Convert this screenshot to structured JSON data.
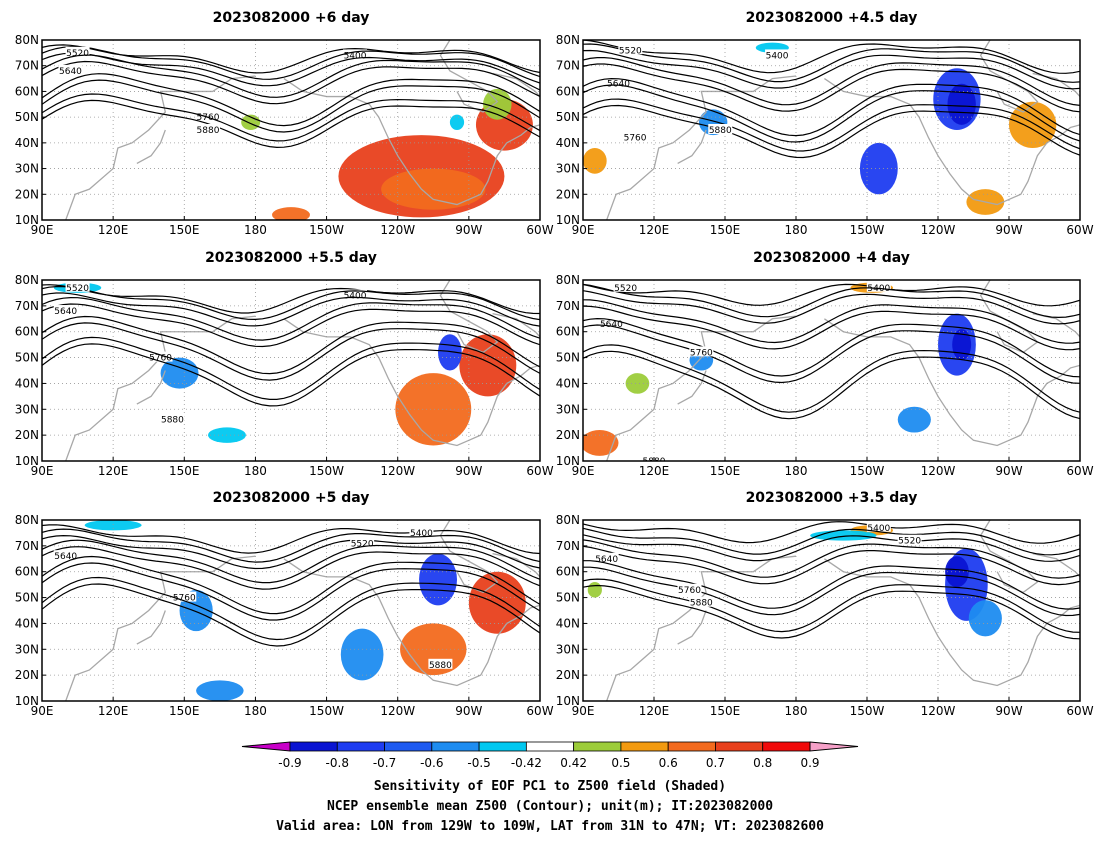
{
  "panels": [
    {
      "id": "p1",
      "title": "2023082000 +6 day",
      "contours": [
        {
          "label": "5400",
          "lbl_lon": 222,
          "lbl_lat": 74,
          "base": 73,
          "amp": 4,
          "phase": 0.6
        },
        {
          "label": "5520",
          "lbl_lon": 105,
          "lbl_lat": 75,
          "base": 69,
          "amp": 5,
          "phase": 0.4
        },
        {
          "label": "5640",
          "lbl_lon": 102,
          "lbl_lat": 68,
          "base": 64,
          "amp": 7,
          "phase": 0.2
        },
        {
          "label": "5760",
          "lbl_lon": 160,
          "lbl_lat": 50,
          "base": 55,
          "amp": 9,
          "phase": 0.0
        },
        {
          "label": "5880",
          "lbl_lon": 160,
          "lbl_lat": 45,
          "base": 48,
          "amp": 8,
          "phase": 0.1
        }
      ],
      "blobs": [
        {
          "lon": 250,
          "lat": 27,
          "rx": 35,
          "ry": 16,
          "color": "#e8401c"
        },
        {
          "lon": 255,
          "lat": 22,
          "rx": 22,
          "ry": 8,
          "color": "#f26a1e"
        },
        {
          "lon": 285,
          "lat": 47,
          "rx": 12,
          "ry": 10,
          "color": "#e8401c"
        },
        {
          "lon": 282,
          "lat": 55,
          "rx": 6,
          "ry": 6,
          "color": "#9ccc3a"
        },
        {
          "lon": 178,
          "lat": 48,
          "rx": 4,
          "ry": 3,
          "color": "#9ccc3a"
        },
        {
          "lon": 195,
          "lat": 12,
          "rx": 8,
          "ry": 3,
          "color": "#f26a1e"
        },
        {
          "lon": 265,
          "lat": 48,
          "rx": 3,
          "ry": 3,
          "color": "#00c8f0"
        }
      ]
    },
    {
      "id": "p2",
      "title": "2023082000 +4.5 day",
      "contours": [
        {
          "label": "5400",
          "lbl_lon": 172,
          "lbl_lat": 74,
          "base": 74,
          "amp": 5,
          "phase": 1.2
        },
        {
          "label": "5520",
          "lbl_lon": 110,
          "lbl_lat": 76,
          "base": 69,
          "amp": 6,
          "phase": 1.0
        },
        {
          "label": "5640",
          "lbl_lon": 105,
          "lbl_lat": 63,
          "base": 62,
          "amp": 8,
          "phase": 0.8
        },
        {
          "label": "5760",
          "lbl_lon": 112,
          "lbl_lat": 42,
          "base": 52,
          "amp": 10,
          "phase": 0.6
        },
        {
          "label": "5880",
          "lbl_lon": 148,
          "lbl_lat": 45,
          "base": 45,
          "amp": 9,
          "phase": 0.5
        }
      ],
      "blobs": [
        {
          "lon": 248,
          "lat": 57,
          "rx": 10,
          "ry": 12,
          "color": "#1e3cf0"
        },
        {
          "lon": 250,
          "lat": 55,
          "rx": 6,
          "ry": 8,
          "color": "#0a14d2"
        },
        {
          "lon": 280,
          "lat": 47,
          "rx": 10,
          "ry": 9,
          "color": "#f29a10"
        },
        {
          "lon": 215,
          "lat": 30,
          "rx": 8,
          "ry": 10,
          "color": "#1e3cf0"
        },
        {
          "lon": 145,
          "lat": 48,
          "rx": 6,
          "ry": 5,
          "color": "#1e8cf0"
        },
        {
          "lon": 260,
          "lat": 17,
          "rx": 8,
          "ry": 5,
          "color": "#f29a10"
        },
        {
          "lon": 95,
          "lat": 33,
          "rx": 5,
          "ry": 5,
          "color": "#f29a10"
        },
        {
          "lon": 170,
          "lat": 77,
          "rx": 7,
          "ry": 2,
          "color": "#00c8f0"
        }
      ]
    },
    {
      "id": "p3",
      "title": "2023082000 +5.5 day",
      "contours": [
        {
          "label": "5400",
          "lbl_lon": 222,
          "lbl_lat": 74,
          "base": 73,
          "amp": 4,
          "phase": 0.9
        },
        {
          "label": "5520",
          "lbl_lon": 105,
          "lbl_lat": 77,
          "base": 69,
          "amp": 5,
          "phase": 0.7
        },
        {
          "label": "5640",
          "lbl_lon": 100,
          "lbl_lat": 68,
          "base": 63,
          "amp": 7,
          "phase": 0.5
        },
        {
          "label": "5760",
          "lbl_lon": 140,
          "lbl_lat": 50,
          "base": 53,
          "amp": 10,
          "phase": 0.3
        },
        {
          "label": "5880",
          "lbl_lon": 145,
          "lbl_lat": 26,
          "base": 44,
          "amp": 11,
          "phase": 0.2
        }
      ],
      "blobs": [
        {
          "lon": 255,
          "lat": 30,
          "rx": 16,
          "ry": 14,
          "color": "#f26a1e"
        },
        {
          "lon": 278,
          "lat": 47,
          "rx": 12,
          "ry": 12,
          "color": "#e8401c"
        },
        {
          "lon": 262,
          "lat": 52,
          "rx": 5,
          "ry": 7,
          "color": "#1e3cf0"
        },
        {
          "lon": 148,
          "lat": 44,
          "rx": 8,
          "ry": 6,
          "color": "#1e8cf0"
        },
        {
          "lon": 168,
          "lat": 20,
          "rx": 8,
          "ry": 3,
          "color": "#00c8f0"
        },
        {
          "lon": 105,
          "lat": 77,
          "rx": 10,
          "ry": 2,
          "color": "#00c8f0"
        }
      ]
    },
    {
      "id": "p4",
      "title": "2023082000 +4 day",
      "contours": [
        {
          "label": "5400",
          "lbl_lon": 215,
          "lbl_lat": 77,
          "base": 75,
          "amp": 3,
          "phase": 1.5
        },
        {
          "label": "5520",
          "lbl_lon": 108,
          "lbl_lat": 77,
          "base": 70,
          "amp": 5,
          "phase": 1.3
        },
        {
          "label": "5640",
          "lbl_lon": 102,
          "lbl_lat": 63,
          "base": 62,
          "amp": 7,
          "phase": 1.1
        },
        {
          "label": "5760",
          "lbl_lon": 140,
          "lbl_lat": 52,
          "base": 52,
          "amp": 10,
          "phase": 0.9
        },
        {
          "label": "5880",
          "lbl_lon": 120,
          "lbl_lat": 10,
          "base": 40,
          "amp": 12,
          "phase": 0.7
        }
      ],
      "blobs": [
        {
          "lon": 248,
          "lat": 55,
          "rx": 8,
          "ry": 12,
          "color": "#1e3cf0"
        },
        {
          "lon": 250,
          "lat": 55,
          "rx": 4,
          "ry": 6,
          "color": "#0a14d2"
        },
        {
          "lon": 212,
          "lat": 77,
          "rx": 9,
          "ry": 2,
          "color": "#f29a10"
        },
        {
          "lon": 230,
          "lat": 26,
          "rx": 7,
          "ry": 5,
          "color": "#1e8cf0"
        },
        {
          "lon": 140,
          "lat": 49,
          "rx": 5,
          "ry": 4,
          "color": "#1e8cf0"
        },
        {
          "lon": 113,
          "lat": 40,
          "rx": 5,
          "ry": 4,
          "color": "#9ccc3a"
        },
        {
          "lon": 97,
          "lat": 17,
          "rx": 8,
          "ry": 5,
          "color": "#f26a1e"
        }
      ]
    },
    {
      "id": "p5",
      "title": "2023082000 +5 day",
      "contours": [
        {
          "label": "5400",
          "lbl_lon": 250,
          "lbl_lat": 75,
          "base": 73,
          "amp": 4,
          "phase": 0.8
        },
        {
          "label": "5520",
          "lbl_lon": 225,
          "lbl_lat": 71,
          "base": 68,
          "amp": 5,
          "phase": 0.6
        },
        {
          "label": "5640",
          "lbl_lon": 100,
          "lbl_lat": 66,
          "base": 62,
          "amp": 7,
          "phase": 0.4
        },
        {
          "label": "5760",
          "lbl_lon": 150,
          "lbl_lat": 50,
          "base": 53,
          "amp": 10,
          "phase": 0.2
        },
        {
          "label": "5880",
          "lbl_lon": 258,
          "lbl_lat": 24,
          "base": 44,
          "amp": 11,
          "phase": 0.1
        }
      ],
      "blobs": [
        {
          "lon": 282,
          "lat": 48,
          "rx": 12,
          "ry": 12,
          "color": "#e8401c"
        },
        {
          "lon": 257,
          "lat": 57,
          "rx": 8,
          "ry": 10,
          "color": "#1e3cf0"
        },
        {
          "lon": 255,
          "lat": 30,
          "rx": 14,
          "ry": 10,
          "color": "#f26a1e"
        },
        {
          "lon": 225,
          "lat": 28,
          "rx": 9,
          "ry": 10,
          "color": "#1e8cf0"
        },
        {
          "lon": 155,
          "lat": 45,
          "rx": 7,
          "ry": 8,
          "color": "#1e8cf0"
        },
        {
          "lon": 165,
          "lat": 14,
          "rx": 10,
          "ry": 4,
          "color": "#1e8cf0"
        },
        {
          "lon": 120,
          "lat": 78,
          "rx": 12,
          "ry": 2,
          "color": "#00c8f0"
        }
      ]
    },
    {
      "id": "p6",
      "title": "2023082000 +3.5 day",
      "contours": [
        {
          "label": "5400",
          "lbl_lon": 215,
          "lbl_lat": 77,
          "base": 76,
          "amp": 3,
          "phase": 1.7
        },
        {
          "label": "5520",
          "lbl_lon": 228,
          "lbl_lat": 72,
          "base": 70,
          "amp": 4,
          "phase": 1.5
        },
        {
          "label": "5640",
          "lbl_lon": 100,
          "lbl_lat": 65,
          "base": 63,
          "amp": 6,
          "phase": 1.3
        },
        {
          "label": "5760",
          "lbl_lon": 135,
          "lbl_lat": 53,
          "base": 53,
          "amp": 8,
          "phase": 1.1
        },
        {
          "label": "5880",
          "lbl_lon": 140,
          "lbl_lat": 48,
          "base": 45,
          "amp": 9,
          "phase": 0.9
        }
      ],
      "blobs": [
        {
          "lon": 252,
          "lat": 55,
          "rx": 9,
          "ry": 14,
          "color": "#1e3cf0"
        },
        {
          "lon": 248,
          "lat": 60,
          "rx": 5,
          "ry": 6,
          "color": "#0a14d2"
        },
        {
          "lon": 260,
          "lat": 42,
          "rx": 7,
          "ry": 7,
          "color": "#1e8cf0"
        },
        {
          "lon": 212,
          "lat": 76,
          "rx": 9,
          "ry": 2,
          "color": "#f29a10"
        },
        {
          "lon": 200,
          "lat": 74,
          "rx": 14,
          "ry": 2,
          "color": "#00c8f0"
        },
        {
          "lon": 95,
          "lat": 53,
          "rx": 3,
          "ry": 3,
          "color": "#9ccc3a"
        }
      ]
    }
  ],
  "axes": {
    "lon_range": [
      90,
      300
    ],
    "lat_range": [
      10,
      80
    ],
    "x_ticks": [
      "90E",
      "120E",
      "150E",
      "180",
      "150W",
      "120W",
      "90W",
      "60W"
    ],
    "y_ticks": [
      "10N",
      "20N",
      "30N",
      "40N",
      "50N",
      "60N",
      "70N",
      "80N"
    ]
  },
  "colorbar": {
    "labels": [
      "-0.9",
      "-0.8",
      "-0.7",
      "-0.6",
      "-0.5",
      "-0.42",
      "0.42",
      "0.5",
      "0.6",
      "0.7",
      "0.8",
      "0.9"
    ],
    "colors": [
      "#c800c8",
      "#0a14d2",
      "#1e3cf0",
      "#1e5af0",
      "#1e8cf0",
      "#00c8f0",
      "#ffffff",
      "#9ccc3a",
      "#f29a10",
      "#f26a1e",
      "#e8401c",
      "#f00a0a",
      "#f5a0c8"
    ]
  },
  "caption": {
    "line1": "Sensitivity of EOF PC1 to Z500 field (Shaded)",
    "line2": "NCEP ensemble mean Z500 (Contour); unit(m); IT:2023082000",
    "line3": "Valid area: LON from 129W to 109W, LAT from 31N to 47N; VT: 2023082600"
  }
}
